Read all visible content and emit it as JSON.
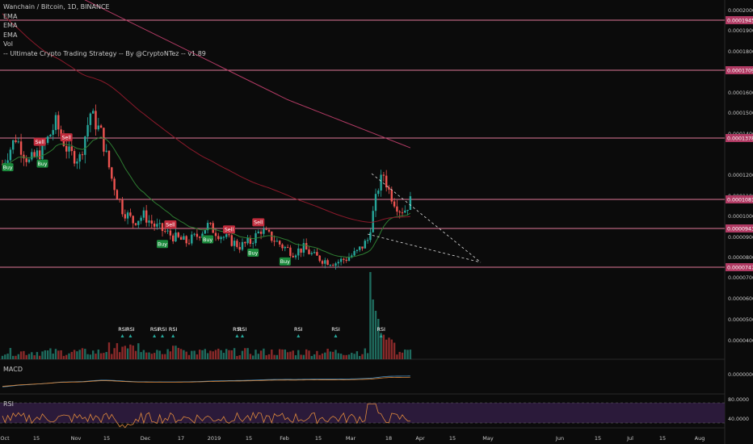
{
  "header": {
    "title": "Wanchain / Bitcoin, 1D, BINANCE",
    "indicators": [
      "EMA",
      "EMA",
      "EMA",
      "Vol",
      "-- Ultimate Crypto Trading Strategy -- By @CryptoNTez -- v1.89"
    ]
  },
  "colors": {
    "background": "#0b0b0b",
    "up": "#26a69a",
    "down": "#ef5350",
    "ema_fast": "#2e7d32",
    "ema_slow": "#8b1a2b",
    "level_line": "#e07a9a",
    "label_bg": "#b03a63",
    "buy": "#1b8a3c",
    "sell": "#c02c3c",
    "macd_blue": "#4a90c2",
    "macd_orange": "#e08a3c",
    "rsi_bg": "#2b1a3a",
    "rsi_line": "#e08a3c"
  },
  "axis": {
    "right_ticks": [
      "0.0002000",
      "0.0001900",
      "0.0001800",
      "0.0001600",
      "0.0001500",
      "0.0001400",
      "0.0001200",
      "0.0001100",
      "0.0001000",
      "0.0000900",
      "0.0000800",
      "0.0000700",
      "0.0000600",
      "0.0000500",
      "0.0000400"
    ],
    "x_ticks": [
      "Oct",
      "15",
      "Nov",
      "15",
      "Dec",
      "17",
      "2019",
      "15",
      "Feb",
      "15",
      "Mar",
      "18",
      "Apr",
      "15",
      "May",
      "Jun",
      "15",
      "Jul",
      "15",
      "Aug"
    ],
    "macd_tick": "0.0000000",
    "rsi_ticks": [
      "80.0000",
      "40.0000"
    ]
  },
  "levels": [
    "0.0001945",
    "0.0001709",
    "0.0001378",
    "0.0001081",
    "0.0000943",
    "0.0000747"
  ],
  "signals": {
    "buy": "Buy",
    "sell": "Sell",
    "rsi": "RSI"
  },
  "panes": {
    "macd_label": "MACD",
    "rsi_label": "RSI"
  },
  "chart_data": {
    "type": "candlestick",
    "pair": "Wanchain / Bitcoin",
    "timeframe": "1D",
    "exchange": "BINANCE",
    "y_axis": {
      "min": 7.47e-05,
      "max": 0.0002,
      "scale": "linear"
    },
    "x_range": [
      "Oct 2018",
      "Aug 2019"
    ],
    "close_path": [
      [
        0,
        0.000125
      ],
      [
        5,
        0.000138
      ],
      [
        10,
        0.000126
      ],
      [
        15,
        0.000132
      ],
      [
        20,
        0.000145
      ],
      [
        25,
        0.00013
      ],
      [
        29,
        0.000128
      ],
      [
        33,
        0.00015
      ],
      [
        37,
        0.00014
      ],
      [
        41,
        0.000118
      ],
      [
        45,
        0.000103
      ],
      [
        49,
        9.7e-05
      ],
      [
        53,
        0.0001
      ],
      [
        57,
        9.5e-05
      ],
      [
        61,
        9.2e-05
      ],
      [
        65,
        8.9e-05
      ],
      [
        69,
        8.7e-05
      ],
      [
        73,
        9e-05
      ],
      [
        77,
        9.5e-05
      ],
      [
        81,
        9.1e-05
      ],
      [
        85,
        8.8e-05
      ],
      [
        89,
        8.5e-05
      ],
      [
        93,
        8.7e-05
      ],
      [
        97,
        9.3e-05
      ],
      [
        101,
        8.9e-05
      ],
      [
        105,
        8.5e-05
      ],
      [
        109,
        8.2e-05
      ],
      [
        113,
        8.4e-05
      ],
      [
        117,
        8e-05
      ],
      [
        121,
        7.8e-05
      ],
      [
        125,
        7.7e-05
      ],
      [
        129,
        7.9e-05
      ],
      [
        133,
        8.2e-05
      ],
      [
        137,
        8.8e-05
      ],
      [
        141,
        0.000114
      ],
      [
        143,
        0.00012
      ],
      [
        145,
        0.000112
      ],
      [
        147,
        0.000107
      ],
      [
        149,
        0.000103
      ],
      [
        151,
        0.000103
      ],
      [
        153,
        0.000107
      ]
    ],
    "signal_marks": [
      {
        "type": "Buy",
        "day": 2
      },
      {
        "type": "Sell",
        "day": 14
      },
      {
        "type": "Buy",
        "day": 15
      },
      {
        "type": "Sell",
        "day": 24
      },
      {
        "type": "Sell",
        "day": 63
      },
      {
        "type": "Buy",
        "day": 60
      },
      {
        "type": "Sell",
        "day": 85
      },
      {
        "type": "Buy",
        "day": 77
      },
      {
        "type": "Sell",
        "day": 96
      },
      {
        "type": "Buy",
        "day": 94
      },
      {
        "type": "Buy",
        "day": 106
      }
    ]
  }
}
